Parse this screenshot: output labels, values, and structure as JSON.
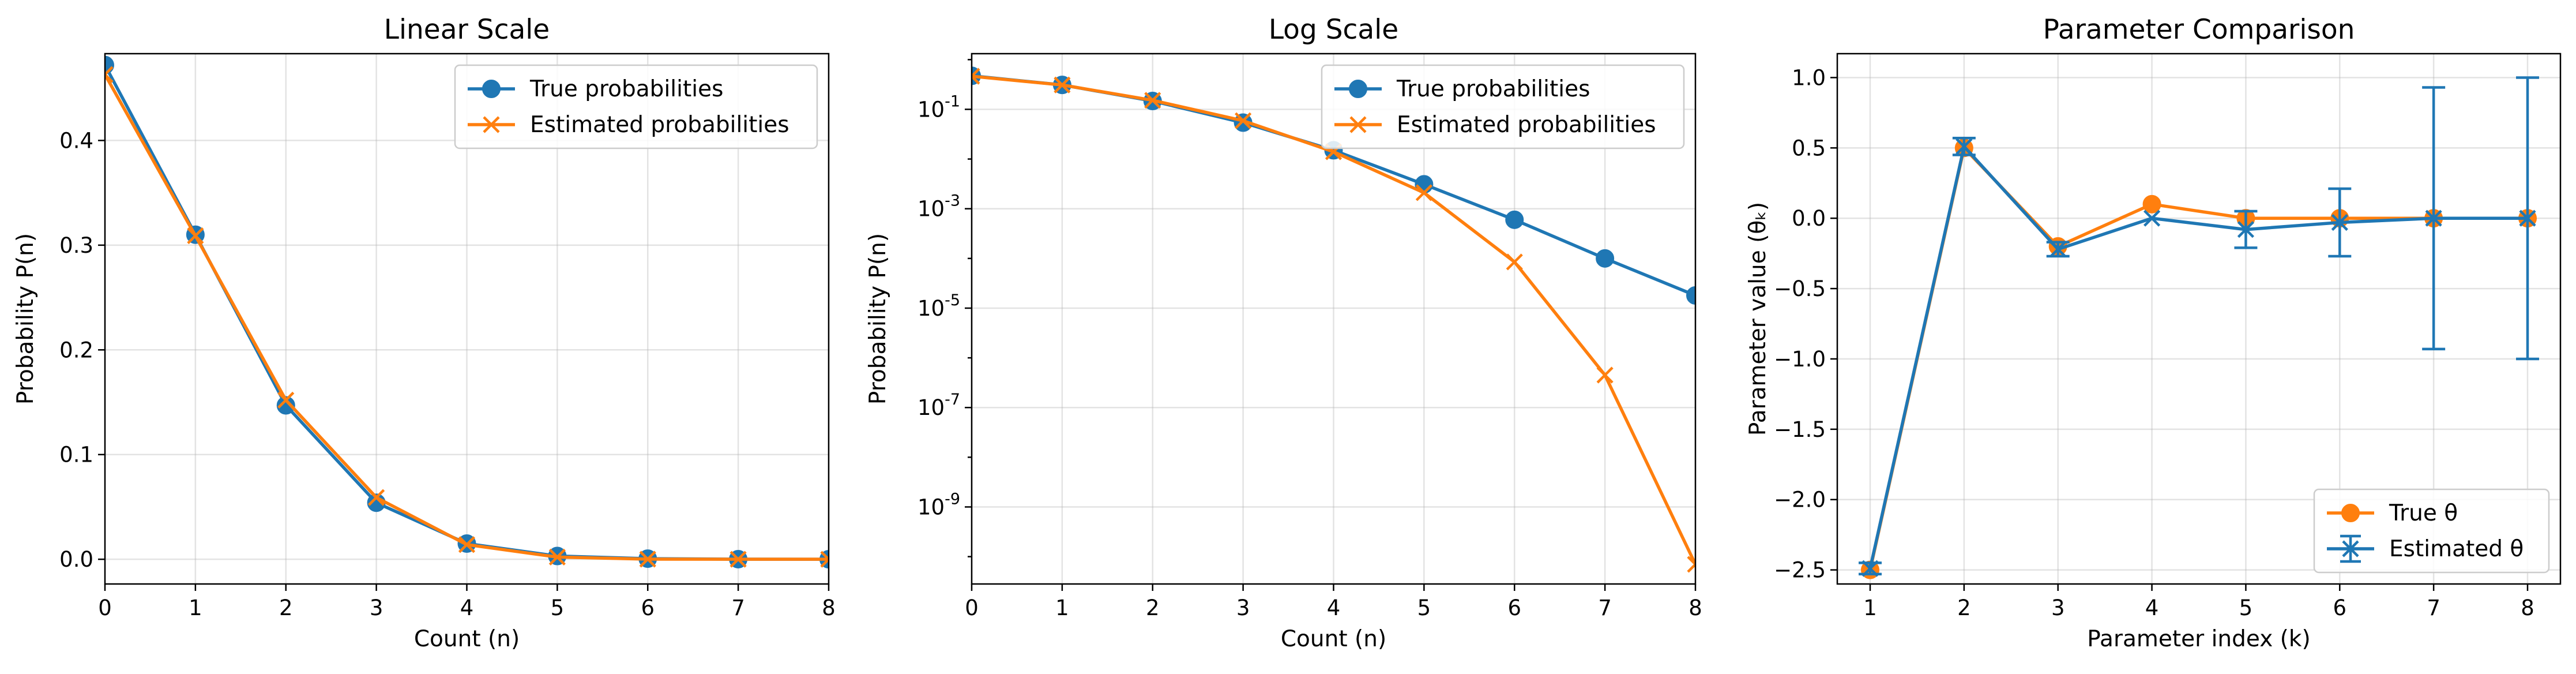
{
  "colors": {
    "true": "#1f77b4",
    "estimated": "#ff7f0e"
  },
  "chart_data": [
    {
      "type": "line",
      "title": "Linear Scale",
      "xlabel": "Count (n)",
      "ylabel": "Probability P(n)",
      "xlim": [
        0,
        8
      ],
      "ylim": [
        -0.0236,
        0.4829
      ],
      "xticks": [
        0,
        1,
        2,
        3,
        4,
        5,
        6,
        7,
        8
      ],
      "yticks": [
        0.0,
        0.1,
        0.2,
        0.3,
        0.4
      ],
      "ytick_labels": [
        "0.0",
        "0.1",
        "0.2",
        "0.3",
        "0.4"
      ],
      "grid": true,
      "legend": "top-right",
      "x": [
        0,
        1,
        2,
        3,
        4,
        5,
        6,
        7,
        8
      ],
      "series": [
        {
          "name": "True probabilities",
          "marker": "circle",
          "color": "#1f77b4",
          "values": [
            0.472,
            0.31,
            0.147,
            0.054,
            0.015,
            0.0031,
            0.0006,
            0.0001,
            1.8e-05
          ]
        },
        {
          "name": "Estimated probabilities",
          "marker": "x",
          "color": "#ff7f0e",
          "values": [
            0.463,
            0.309,
            0.152,
            0.059,
            0.014,
            0.0021,
            8.5e-05,
            4.5e-07,
            7e-11
          ]
        }
      ]
    },
    {
      "type": "line",
      "title": "Log Scale",
      "xlabel": "Count (n)",
      "ylabel": "Probability P(n)",
      "yscale": "log",
      "xlim": [
        0,
        8
      ],
      "ylim_log10": [
        -10.55,
        0.12
      ],
      "xticks": [
        0,
        1,
        2,
        3,
        4,
        5,
        6,
        7,
        8
      ],
      "ytick_labels": [
        {
          "base": "10",
          "exp": "-1"
        },
        {
          "base": "10",
          "exp": "-3"
        },
        {
          "base": "10",
          "exp": "-5"
        },
        {
          "base": "10",
          "exp": "-7"
        },
        {
          "base": "10",
          "exp": "-9"
        }
      ],
      "yticks_log10": [
        -1,
        -3,
        -5,
        -7,
        -9
      ],
      "grid": true,
      "legend": "top-right",
      "x": [
        0,
        1,
        2,
        3,
        4,
        5,
        6,
        7,
        8
      ],
      "series": [
        {
          "name": "True probabilities",
          "marker": "circle",
          "color": "#1f77b4",
          "values": [
            0.472,
            0.31,
            0.147,
            0.054,
            0.015,
            0.0031,
            0.0006,
            0.0001,
            1.8e-05
          ]
        },
        {
          "name": "Estimated probabilities",
          "marker": "x",
          "color": "#ff7f0e",
          "values": [
            0.463,
            0.309,
            0.152,
            0.059,
            0.014,
            0.0021,
            8.5e-05,
            4.5e-07,
            7e-11
          ]
        }
      ]
    },
    {
      "type": "line",
      "title": "Parameter Comparison",
      "xlabel": "Parameter index (k)",
      "ylabel": "Parameter value (θₖ)",
      "xlim": [
        0.65,
        8.35
      ],
      "ylim": [
        -2.6,
        1.17
      ],
      "xticks": [
        1,
        2,
        3,
        4,
        5,
        6,
        7,
        8
      ],
      "yticks": [
        1.0,
        0.5,
        0.0,
        -0.5,
        -1.0,
        -1.5,
        -2.0,
        -2.5
      ],
      "ytick_labels": [
        "1.0",
        "0.5",
        "0.0",
        "−0.5",
        "−1.0",
        "−1.5",
        "−2.0",
        "−2.5"
      ],
      "grid": true,
      "legend": "bottom-right",
      "x": [
        1,
        2,
        3,
        4,
        5,
        6,
        7,
        8
      ],
      "series": [
        {
          "name": "True θ",
          "marker": "circle",
          "color": "#ff7f0e",
          "values": [
            -2.5,
            0.5,
            -0.2,
            0.1,
            0.0,
            0.0,
            0.0,
            0.0
          ]
        },
        {
          "name": "Estimated θ",
          "marker": "x",
          "color": "#1f77b4",
          "errorbar": true,
          "values": [
            -2.49,
            0.51,
            -0.22,
            0.0,
            -0.08,
            -0.03,
            0.0,
            0.0
          ],
          "errors": [
            0.04,
            0.06,
            0.05,
            0.0,
            0.13,
            0.24,
            0.93,
            1.0
          ]
        }
      ]
    }
  ]
}
